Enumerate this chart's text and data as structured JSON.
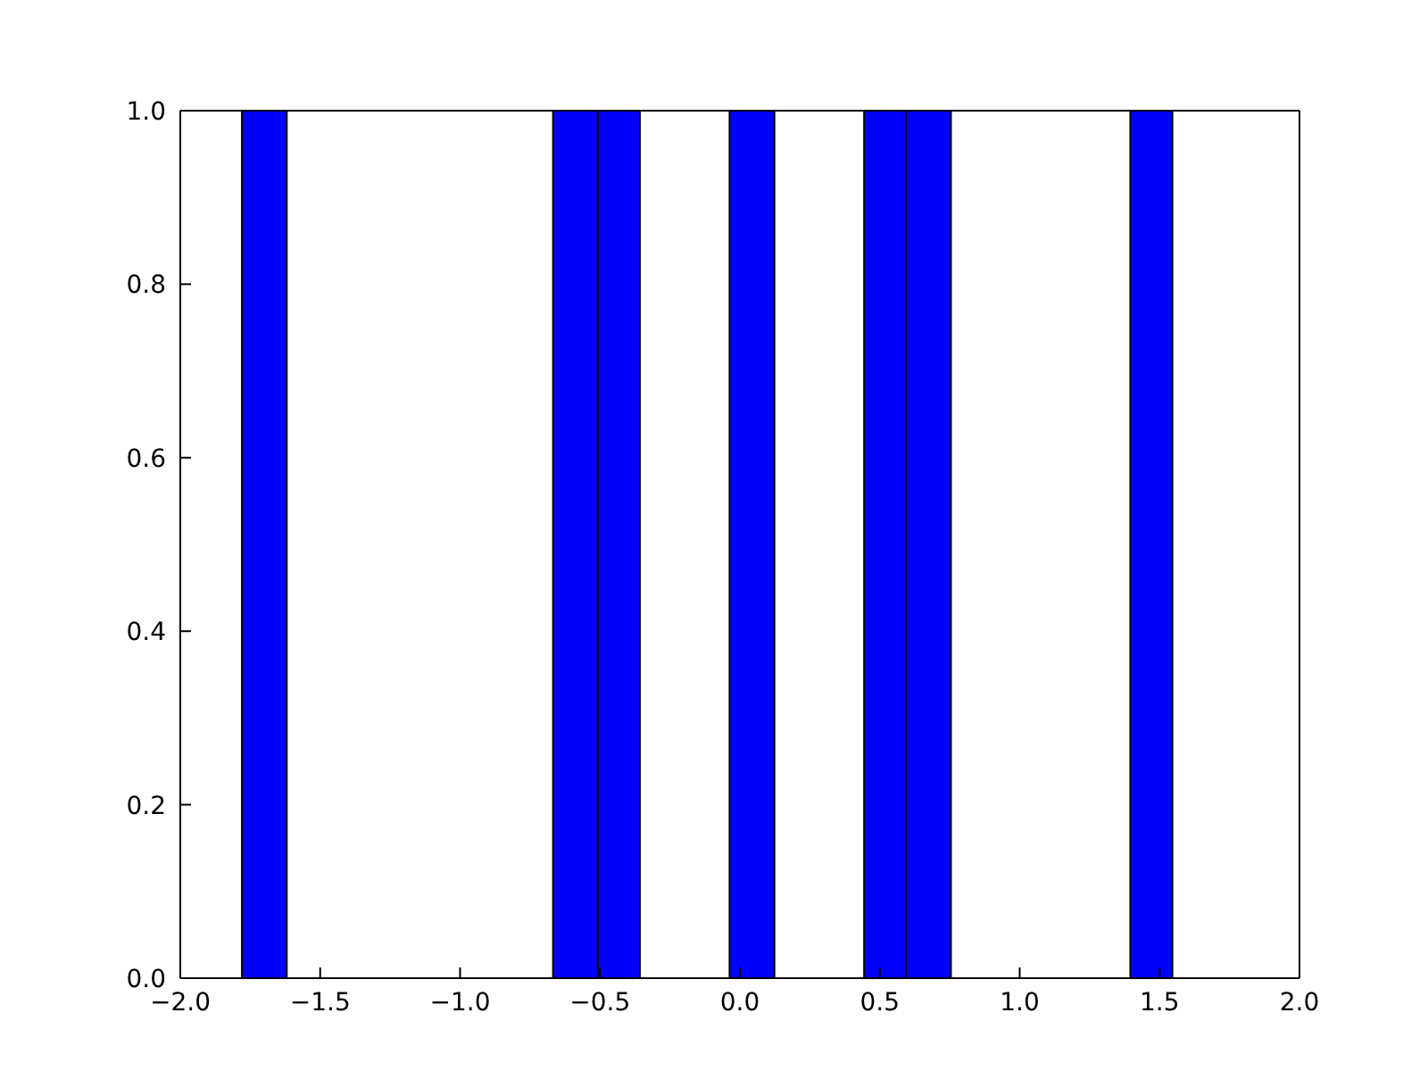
{
  "chart_data": {
    "type": "histogram",
    "color": "#0000ff",
    "bins": [
      -1.78,
      -1.62,
      -0.67,
      -0.51,
      -0.36,
      -0.04,
      0.12,
      0.44,
      0.59,
      0.75,
      1.39,
      1.54
    ],
    "values": [
      1,
      0,
      1,
      1,
      0,
      1,
      0,
      1,
      1,
      0,
      1
    ],
    "xlim": [
      -2.0,
      2.0
    ],
    "xticks": [
      {
        "value": -2,
        "label": "−2.0"
      },
      {
        "value": -1.5,
        "label": "−1.5"
      },
      {
        "value": -1,
        "label": "−1.0"
      },
      {
        "value": -0.5,
        "label": "−0.5"
      },
      {
        "value": 0,
        "label": "0.0"
      },
      {
        "value": 0.5,
        "label": "0.5"
      },
      {
        "value": 1,
        "label": "1.0"
      },
      {
        "value": 1.5,
        "label": "1.5"
      },
      {
        "value": 2,
        "label": "2.0"
      }
    ],
    "ylim": [
      0,
      1.0
    ],
    "yticks": [
      {
        "value": 0,
        "label": "0.0"
      },
      {
        "value": 0.2,
        "label": "0.2"
      },
      {
        "value": 0.4,
        "label": "0.4"
      },
      {
        "value": 0.6,
        "label": "0.6"
      },
      {
        "value": 0.8,
        "label": "0.8"
      },
      {
        "value": 1,
        "label": "1.0"
      }
    ],
    "grid": false
  }
}
